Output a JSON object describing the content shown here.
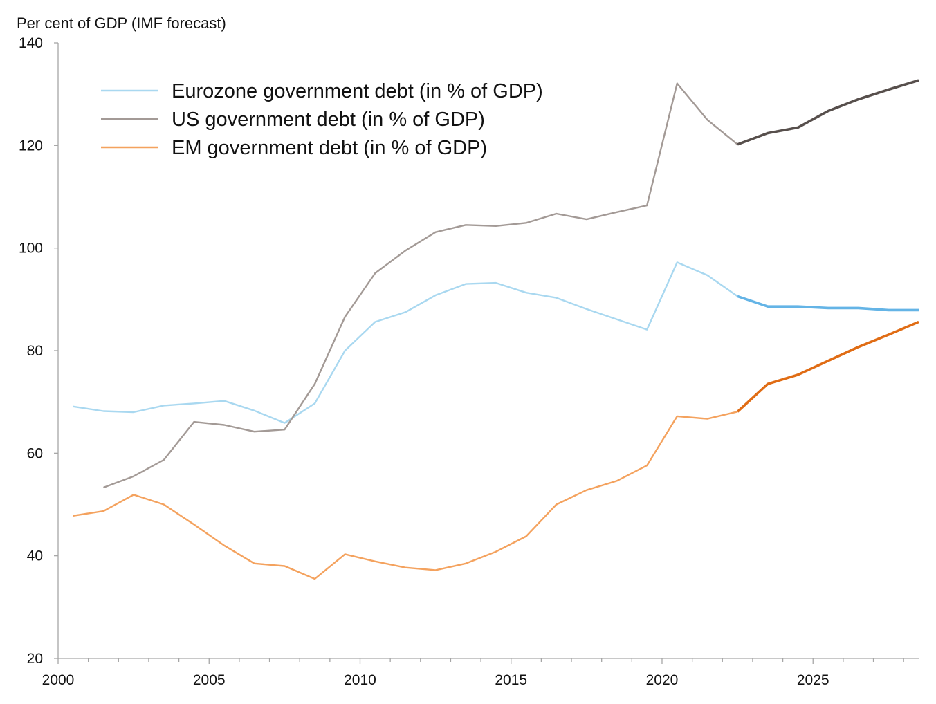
{
  "chart_data": {
    "type": "line",
    "ylabel": "Per cent of GDP (IMF forecast)",
    "xlabel": "",
    "ylim": [
      20,
      140
    ],
    "xlim": [
      2000,
      2028.5
    ],
    "y_ticks": [
      20,
      40,
      60,
      80,
      100,
      120,
      140
    ],
    "x_ticks": [
      2000,
      2005,
      2010,
      2015,
      2020,
      2025
    ],
    "grid": false,
    "legend_position": "top-left",
    "forecast_start": 2022.5,
    "series": [
      {
        "name": "Eurozone government debt (in % of GDP)",
        "color": "#a9d8f0",
        "forecast_color": "#64b4e6",
        "x": [
          2000.5,
          2001.5,
          2002.5,
          2003.5,
          2004.5,
          2005.5,
          2006.5,
          2007.5,
          2008.5,
          2009.5,
          2010.5,
          2011.5,
          2012.5,
          2013.5,
          2014.5,
          2015.5,
          2016.5,
          2017.5,
          2018.5,
          2019.5,
          2020.5,
          2021.5,
          2022.5,
          2023.5,
          2024.5,
          2025.5,
          2026.5,
          2027.5,
          2028.5
        ],
        "values": [
          69.1,
          68.2,
          68.0,
          69.3,
          69.7,
          70.2,
          68.3,
          65.9,
          69.7,
          80.0,
          85.6,
          87.5,
          90.8,
          93.0,
          93.2,
          91.3,
          90.3,
          88.1,
          86.1,
          84.1,
          97.2,
          94.7,
          90.6,
          88.6,
          88.6,
          88.3,
          88.3,
          87.9,
          87.9
        ]
      },
      {
        "name": "US government debt (in % of GDP)",
        "color": "#a39a96",
        "forecast_color": "#574f4c",
        "x": [
          2001.5,
          2002.5,
          2003.5,
          2004.5,
          2005.5,
          2006.5,
          2007.5,
          2008.5,
          2009.5,
          2010.5,
          2011.5,
          2012.5,
          2013.5,
          2014.5,
          2015.5,
          2016.5,
          2017.5,
          2018.5,
          2019.5,
          2020.5,
          2021.5,
          2022.5,
          2023.5,
          2024.5,
          2025.5,
          2026.5,
          2027.5,
          2028.5
        ],
        "values": [
          53.3,
          55.5,
          58.7,
          66.1,
          65.5,
          64.2,
          64.6,
          73.5,
          86.6,
          95.1,
          99.5,
          103.1,
          104.5,
          104.3,
          104.9,
          106.7,
          105.6,
          107.0,
          108.3,
          132.1,
          125.0,
          120.2,
          122.4,
          123.5,
          126.7,
          129.0,
          130.9,
          132.7
        ]
      },
      {
        "name": "EM government debt (in % of GDP)",
        "color": "#f4a25e",
        "forecast_color": "#e06c14",
        "x": [
          2000.5,
          2001.5,
          2002.5,
          2003.5,
          2004.5,
          2005.5,
          2006.5,
          2007.5,
          2008.5,
          2009.5,
          2010.5,
          2011.5,
          2012.5,
          2013.5,
          2014.5,
          2015.5,
          2016.5,
          2017.5,
          2018.5,
          2019.5,
          2020.5,
          2021.5,
          2022.5,
          2023.5,
          2024.5,
          2025.5,
          2026.5,
          2027.5,
          2028.5
        ],
        "values": [
          47.8,
          48.7,
          51.9,
          50.0,
          46.1,
          42.0,
          38.5,
          38.0,
          35.5,
          40.3,
          38.9,
          37.7,
          37.2,
          38.5,
          40.8,
          43.8,
          50.0,
          52.8,
          54.6,
          57.6,
          67.2,
          66.7,
          68.1,
          73.5,
          75.3,
          78.0,
          80.7,
          83.1,
          85.6
        ]
      }
    ]
  }
}
